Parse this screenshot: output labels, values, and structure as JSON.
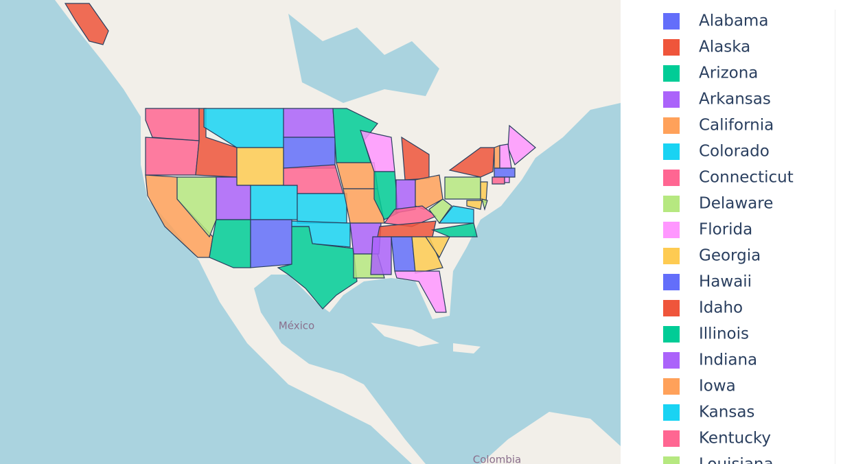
{
  "map": {
    "labels": [
      "México",
      "Colombia"
    ]
  },
  "legend": {
    "items": [
      {
        "name": "Alabama",
        "color": "#636efa"
      },
      {
        "name": "Alaska",
        "color": "#EF553B"
      },
      {
        "name": "Arizona",
        "color": "#00cc96"
      },
      {
        "name": "Arkansas",
        "color": "#ab63fa"
      },
      {
        "name": "California",
        "color": "#FFA15A"
      },
      {
        "name": "Colorado",
        "color": "#19d3f3"
      },
      {
        "name": "Connecticut",
        "color": "#FF6692"
      },
      {
        "name": "Delaware",
        "color": "#B6E880"
      },
      {
        "name": "Florida",
        "color": "#FF97FF"
      },
      {
        "name": "Georgia",
        "color": "#FECB52"
      },
      {
        "name": "Hawaii",
        "color": "#636efa"
      },
      {
        "name": "Idaho",
        "color": "#EF553B"
      },
      {
        "name": "Illinois",
        "color": "#00cc96"
      },
      {
        "name": "Indiana",
        "color": "#ab63fa"
      },
      {
        "name": "Iowa",
        "color": "#FFA15A"
      },
      {
        "name": "Kansas",
        "color": "#19d3f3"
      },
      {
        "name": "Kentucky",
        "color": "#FF6692"
      },
      {
        "name": "Louisiana",
        "color": "#B6E880"
      }
    ]
  }
}
